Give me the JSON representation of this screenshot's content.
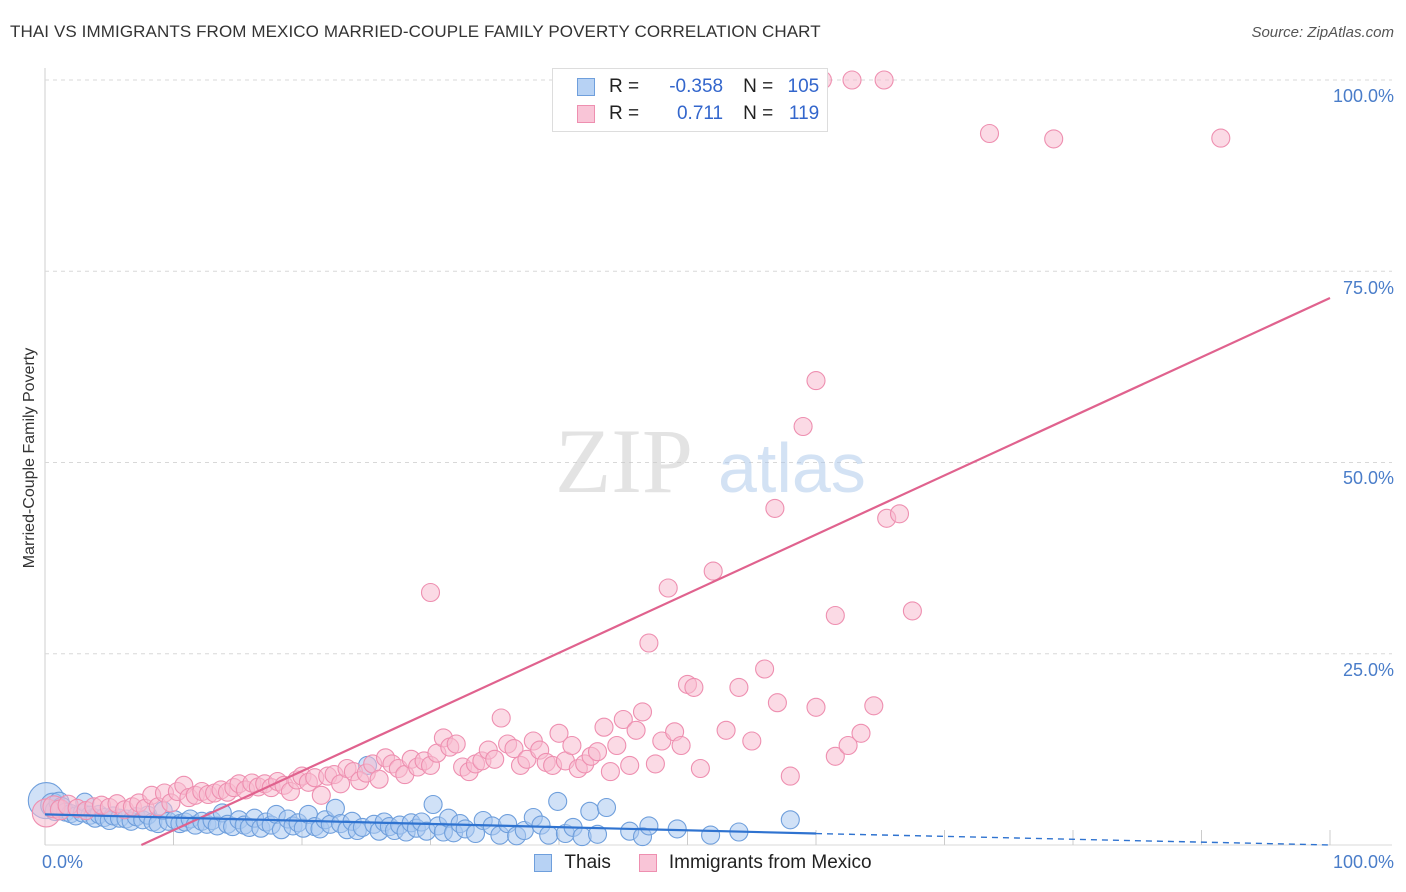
{
  "title": "THAI VS IMMIGRANTS FROM MEXICO MARRIED-COUPLE FAMILY POVERTY CORRELATION CHART",
  "source": "Source: ZipAtlas.com",
  "watermark": {
    "zip": "ZIP",
    "atlas": "atlas"
  },
  "legend": {
    "r_label": "R =",
    "n_label": "N =",
    "series1": {
      "r": "-0.358",
      "n": "105"
    },
    "series2": {
      "r": "0.711",
      "n": "119"
    }
  },
  "bottom_legend": {
    "series1": "Thais",
    "series2": "Immigrants from Mexico"
  },
  "colors": {
    "thai_fill": "#a9c8f0",
    "thai_stroke": "#6f9fdc",
    "thai_line": "#2f73d0",
    "mex_fill": "#f7bcd0",
    "mex_stroke": "#ee8fb0",
    "mex_line": "#e0628e",
    "tick_text": "#4a7dc9"
  },
  "chart_data": {
    "type": "scatter",
    "title": "THAI VS IMMIGRANTS FROM MEXICO MARRIED-COUPLE FAMILY POVERTY CORRELATION CHART",
    "xlabel": "",
    "ylabel": "Married-Couple Family Poverty",
    "xlim": [
      0,
      100
    ],
    "ylim": [
      0,
      100
    ],
    "x_tick_labels": [
      "0.0%",
      "100.0%"
    ],
    "y_ticks": [
      25,
      50,
      75,
      100
    ],
    "y_tick_labels": [
      "25.0%",
      "50.0%",
      "75.0%",
      "100.0%"
    ],
    "grid": true,
    "series": [
      {
        "name": "Thais",
        "r": -0.358,
        "n": 105,
        "trend": {
          "x0": 0,
          "y0": 4.0,
          "x1": 60,
          "y1": 1.5,
          "dashed_to_x": 100,
          "dashed_y": 0.0
        },
        "points": [
          [
            0.1,
            5.8,
            18
          ],
          [
            0.6,
            5.2,
            12
          ],
          [
            0.8,
            4.5,
            10
          ],
          [
            1.1,
            5.6,
            10
          ],
          [
            1.3,
            4.9,
            10
          ],
          [
            1.6,
            4.3,
            9
          ],
          [
            2.0,
            4.1,
            9
          ],
          [
            2.4,
            3.8,
            9
          ],
          [
            2.9,
            4.2,
            9
          ],
          [
            3.1,
            5.6,
            9
          ],
          [
            3.5,
            3.9,
            9
          ],
          [
            3.9,
            3.5,
            9
          ],
          [
            4.2,
            4.0,
            9
          ],
          [
            4.6,
            3.6,
            9
          ],
          [
            5.0,
            3.2,
            9
          ],
          [
            5.3,
            3.8,
            9
          ],
          [
            5.8,
            3.5,
            9
          ],
          [
            6.3,
            3.4,
            9
          ],
          [
            6.7,
            3.1,
            9
          ],
          [
            7.1,
            3.7,
            9
          ],
          [
            7.6,
            3.3,
            9
          ],
          [
            8.0,
            3.9,
            9
          ],
          [
            8.4,
            3.0,
            9
          ],
          [
            8.8,
            2.8,
            9
          ],
          [
            9.2,
            4.5,
            9
          ],
          [
            9.6,
            3.1,
            9
          ],
          [
            10.1,
            3.3,
            9
          ],
          [
            10.5,
            2.8,
            9
          ],
          [
            10.9,
            3.0,
            9
          ],
          [
            11.3,
            3.4,
            9
          ],
          [
            11.7,
            2.6,
            9
          ],
          [
            12.2,
            3.1,
            9
          ],
          [
            12.6,
            2.7,
            9
          ],
          [
            13.0,
            3.2,
            9
          ],
          [
            13.4,
            2.5,
            9
          ],
          [
            13.8,
            4.2,
            9
          ],
          [
            14.2,
            2.7,
            9
          ],
          [
            14.6,
            2.4,
            9
          ],
          [
            15.1,
            3.3,
            9
          ],
          [
            15.5,
            2.6,
            9
          ],
          [
            15.9,
            2.3,
            9
          ],
          [
            16.3,
            3.5,
            9
          ],
          [
            16.8,
            2.2,
            9
          ],
          [
            17.2,
            3.0,
            9
          ],
          [
            17.6,
            2.6,
            9
          ],
          [
            18.0,
            4.0,
            9
          ],
          [
            18.4,
            2.0,
            9
          ],
          [
            18.9,
            3.4,
            9
          ],
          [
            19.3,
            2.5,
            9
          ],
          [
            19.7,
            2.9,
            9
          ],
          [
            20.1,
            2.2,
            9
          ],
          [
            20.5,
            4.0,
            9
          ],
          [
            21.0,
            2.4,
            9
          ],
          [
            21.4,
            2.1,
            9
          ],
          [
            21.8,
            3.3,
            9
          ],
          [
            22.2,
            2.7,
            9
          ],
          [
            22.6,
            4.8,
            9
          ],
          [
            23.0,
            2.8,
            9
          ],
          [
            23.5,
            2.0,
            9
          ],
          [
            23.9,
            3.1,
            9
          ],
          [
            24.3,
            1.9,
            9
          ],
          [
            24.7,
            2.3,
            9
          ],
          [
            25.1,
            10.4,
            9
          ],
          [
            25.6,
            2.7,
            9
          ],
          [
            26.0,
            1.8,
            9
          ],
          [
            26.4,
            3.0,
            9
          ],
          [
            26.8,
            2.4,
            9
          ],
          [
            27.2,
            1.9,
            9
          ],
          [
            27.6,
            2.6,
            9
          ],
          [
            28.1,
            1.7,
            9
          ],
          [
            28.5,
            2.9,
            9
          ],
          [
            28.9,
            2.2,
            9
          ],
          [
            29.3,
            3.0,
            9
          ],
          [
            29.7,
            1.8,
            9
          ],
          [
            30.2,
            5.3,
            9
          ],
          [
            30.6,
            2.5,
            9
          ],
          [
            31.0,
            1.7,
            9
          ],
          [
            31.4,
            3.5,
            9
          ],
          [
            31.8,
            1.6,
            9
          ],
          [
            32.3,
            2.8,
            9
          ],
          [
            32.7,
            2.1,
            9
          ],
          [
            33.5,
            1.5,
            9
          ],
          [
            34.1,
            3.2,
            9
          ],
          [
            34.8,
            2.5,
            9
          ],
          [
            35.4,
            1.3,
            9
          ],
          [
            36.0,
            2.8,
            9
          ],
          [
            36.7,
            1.2,
            9
          ],
          [
            37.3,
            1.9,
            9
          ],
          [
            38.0,
            3.6,
            9
          ],
          [
            38.6,
            2.6,
            9
          ],
          [
            39.2,
            1.3,
            9
          ],
          [
            39.9,
            5.7,
            9
          ],
          [
            40.5,
            1.5,
            9
          ],
          [
            41.1,
            2.3,
            9
          ],
          [
            41.8,
            1.1,
            9
          ],
          [
            42.4,
            4.4,
            9
          ],
          [
            43.0,
            1.4,
            9
          ],
          [
            43.7,
            4.9,
            9
          ],
          [
            45.5,
            1.8,
            9
          ],
          [
            46.5,
            1.1,
            9
          ],
          [
            47.0,
            2.5,
            9
          ],
          [
            49.2,
            2.1,
            9
          ],
          [
            51.8,
            1.3,
            9
          ],
          [
            54.0,
            1.7,
            9
          ],
          [
            58.0,
            3.3,
            9
          ]
        ]
      },
      {
        "name": "Immigrants from Mexico",
        "r": 0.711,
        "n": 119,
        "trend": {
          "x0": 7.5,
          "y0": 0.0,
          "x1": 100,
          "y1": 71.5
        },
        "points": [
          [
            0.1,
            4.2,
            14
          ],
          [
            0.7,
            5.0,
            11
          ],
          [
            1.2,
            4.6,
            10
          ],
          [
            1.8,
            5.2,
            10
          ],
          [
            2.5,
            4.8,
            9
          ],
          [
            3.2,
            4.5,
            9
          ],
          [
            3.8,
            5.0,
            9
          ],
          [
            4.4,
            5.2,
            9
          ],
          [
            5.0,
            4.9,
            9
          ],
          [
            5.6,
            5.4,
            9
          ],
          [
            6.2,
            4.6,
            9
          ],
          [
            6.8,
            5.0,
            9
          ],
          [
            7.3,
            5.5,
            9
          ],
          [
            7.8,
            4.8,
            9
          ],
          [
            8.3,
            6.5,
            9
          ],
          [
            8.8,
            5.0,
            9
          ],
          [
            9.3,
            6.8,
            9
          ],
          [
            9.8,
            5.5,
            9
          ],
          [
            10.3,
            7.0,
            9
          ],
          [
            10.8,
            7.8,
            9
          ],
          [
            11.2,
            6.2,
            9
          ],
          [
            11.7,
            6.5,
            9
          ],
          [
            12.2,
            7.0,
            9
          ],
          [
            12.7,
            6.6,
            9
          ],
          [
            13.2,
            6.8,
            9
          ],
          [
            13.7,
            7.2,
            9
          ],
          [
            14.2,
            6.9,
            9
          ],
          [
            14.7,
            7.5,
            9
          ],
          [
            15.1,
            8.0,
            9
          ],
          [
            15.6,
            7.2,
            9
          ],
          [
            16.1,
            8.1,
            9
          ],
          [
            16.6,
            7.6,
            9
          ],
          [
            17.1,
            8.0,
            9
          ],
          [
            17.6,
            7.5,
            9
          ],
          [
            18.1,
            8.3,
            9
          ],
          [
            18.6,
            7.8,
            9
          ],
          [
            19.1,
            7.0,
            9
          ],
          [
            19.6,
            8.5,
            9
          ],
          [
            20.0,
            9.0,
            9
          ],
          [
            20.5,
            8.2,
            9
          ],
          [
            21.0,
            8.8,
            9
          ],
          [
            21.5,
            6.5,
            9
          ],
          [
            22.0,
            9.0,
            9
          ],
          [
            22.5,
            9.2,
            9
          ],
          [
            23.0,
            8.0,
            9
          ],
          [
            23.5,
            10.0,
            9
          ],
          [
            24.0,
            9.6,
            9
          ],
          [
            24.5,
            8.4,
            9
          ],
          [
            25.0,
            9.4,
            9
          ],
          [
            25.5,
            10.6,
            9
          ],
          [
            26.0,
            8.6,
            9
          ],
          [
            26.5,
            11.4,
            9
          ],
          [
            27.0,
            10.6,
            9
          ],
          [
            27.5,
            10.0,
            9
          ],
          [
            28.0,
            9.2,
            9
          ],
          [
            28.5,
            11.2,
            9
          ],
          [
            29.0,
            10.2,
            9
          ],
          [
            29.5,
            11.0,
            9
          ],
          [
            30.0,
            10.4,
            9
          ],
          [
            30.5,
            12.0,
            9
          ],
          [
            31.0,
            14.0,
            9
          ],
          [
            31.5,
            12.8,
            9
          ],
          [
            32.0,
            13.2,
            9
          ],
          [
            32.5,
            10.2,
            9
          ],
          [
            33.0,
            9.6,
            9
          ],
          [
            33.5,
            10.6,
            9
          ],
          [
            34.0,
            11.0,
            9
          ],
          [
            34.5,
            12.4,
            9
          ],
          [
            35.0,
            11.2,
            9
          ],
          [
            35.5,
            16.6,
            9
          ],
          [
            36.0,
            13.2,
            9
          ],
          [
            36.5,
            12.6,
            9
          ],
          [
            37.0,
            10.4,
            9
          ],
          [
            37.5,
            11.2,
            9
          ],
          [
            38.0,
            13.6,
            9
          ],
          [
            38.5,
            12.4,
            9
          ],
          [
            39.0,
            10.8,
            9
          ],
          [
            39.5,
            10.4,
            9
          ],
          [
            40.0,
            14.6,
            9
          ],
          [
            40.5,
            11.0,
            9
          ],
          [
            41.0,
            13.0,
            9
          ],
          [
            41.5,
            10.0,
            9
          ],
          [
            42.0,
            10.6,
            9
          ],
          [
            42.5,
            11.6,
            9
          ],
          [
            43.0,
            12.2,
            9
          ],
          [
            43.5,
            15.4,
            9
          ],
          [
            44.0,
            9.6,
            9
          ],
          [
            44.5,
            13.0,
            9
          ],
          [
            45.0,
            16.4,
            9
          ],
          [
            45.5,
            10.4,
            9
          ],
          [
            46.0,
            15.0,
            9
          ],
          [
            46.5,
            17.4,
            9
          ],
          [
            47.0,
            26.4,
            9
          ],
          [
            47.5,
            10.6,
            9
          ],
          [
            48.0,
            13.6,
            9
          ],
          [
            48.5,
            33.6,
            9
          ],
          [
            49.0,
            14.8,
            9
          ],
          [
            49.5,
            13.0,
            9
          ],
          [
            50.0,
            21.0,
            9
          ],
          [
            50.5,
            20.6,
            9
          ],
          [
            51.0,
            10.0,
            9
          ],
          [
            52.0,
            35.8,
            9
          ],
          [
            53.0,
            15.0,
            9
          ],
          [
            54.0,
            20.6,
            9
          ],
          [
            55.0,
            13.6,
            9
          ],
          [
            56.0,
            23.0,
            9
          ],
          [
            57.0,
            18.6,
            9
          ],
          [
            58.0,
            9.0,
            9
          ],
          [
            59.0,
            54.7,
            9
          ],
          [
            60.0,
            18.0,
            9
          ],
          [
            61.5,
            11.6,
            9
          ],
          [
            62.5,
            13.0,
            9
          ],
          [
            63.5,
            14.6,
            9
          ],
          [
            64.5,
            18.2,
            9
          ],
          [
            65.5,
            42.7,
            9
          ],
          [
            66.5,
            43.3,
            9
          ],
          [
            67.5,
            30.6,
            9
          ],
          [
            73.5,
            93.0,
            9
          ],
          [
            91.5,
            92.4,
            9
          ]
        ],
        "outlier_points": [
          [
            56.8,
            44.0,
            9
          ],
          [
            60.0,
            60.7,
            9
          ],
          [
            61.5,
            30.0,
            9
          ],
          [
            30.0,
            33.0,
            9
          ],
          [
            60.5,
            100.0,
            9
          ],
          [
            62.8,
            100.0,
            9
          ],
          [
            65.3,
            100.0,
            9
          ],
          [
            78.5,
            92.3,
            9
          ]
        ]
      }
    ]
  }
}
